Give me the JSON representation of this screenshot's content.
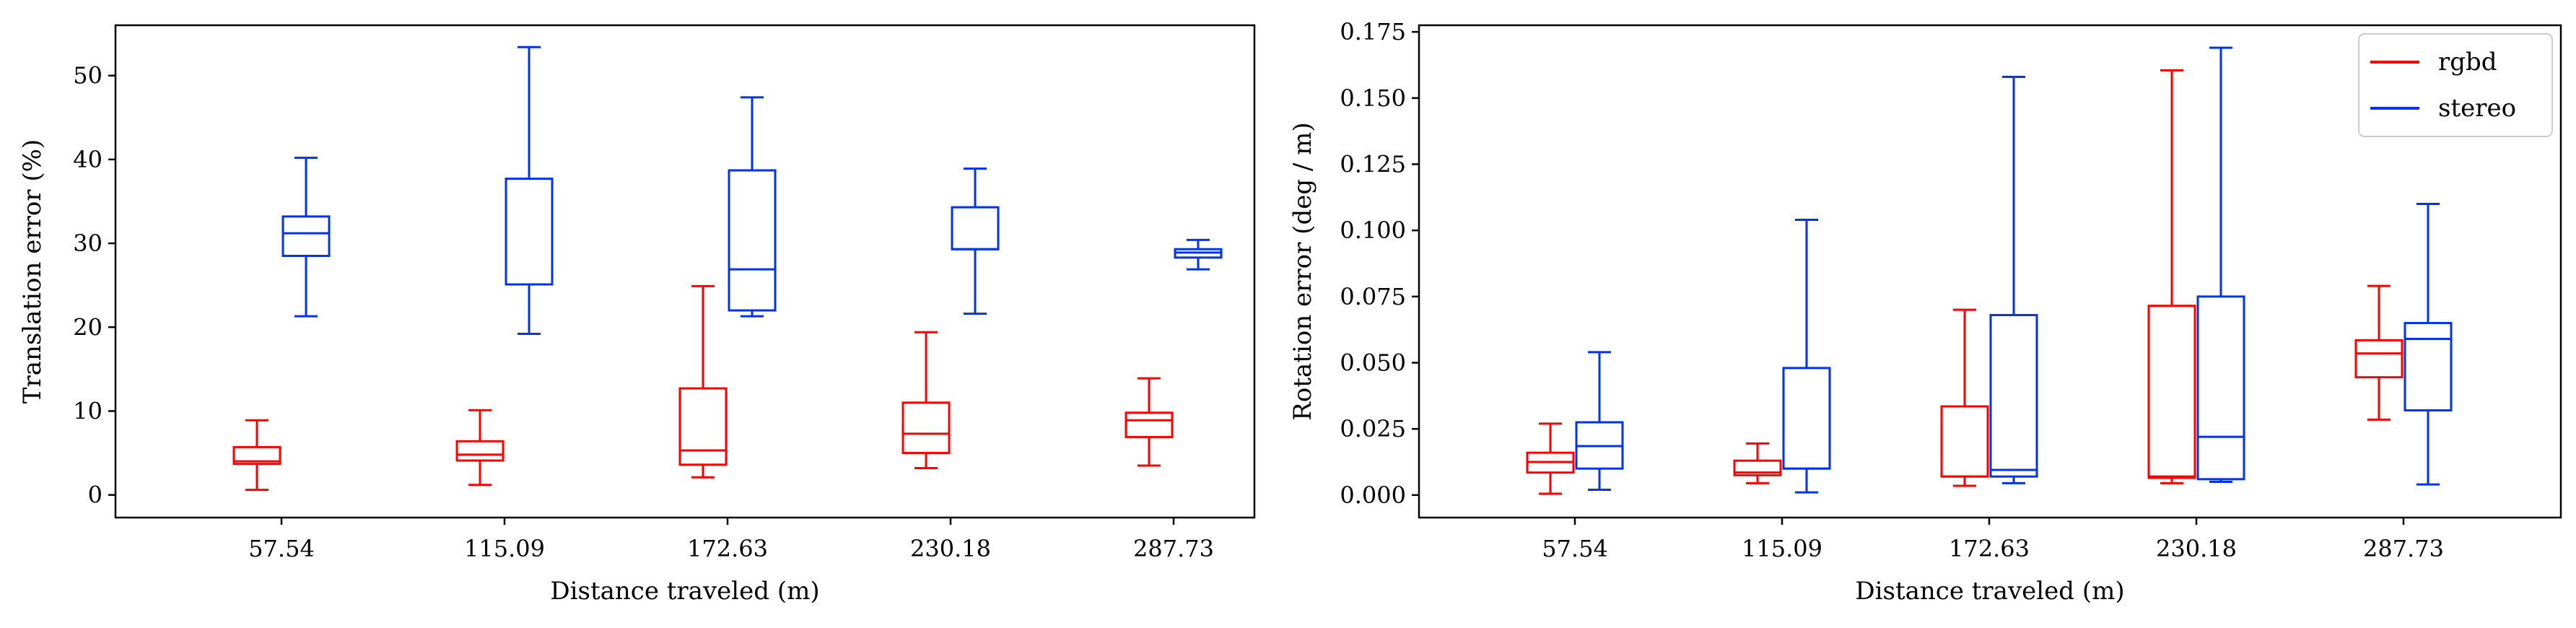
{
  "colors": {
    "rgbd": "#ff0000",
    "stereo": "#0033ee",
    "axis": "#000000"
  },
  "chart_data": [
    {
      "type": "box",
      "xlabel": "Distance traveled (m)",
      "ylabel": "Translation error (%)",
      "categories": [
        "57.54",
        "115.09",
        "172.63",
        "230.18",
        "287.73"
      ],
      "ylim": [
        -2.7,
        56.0
      ],
      "yticks": [
        0,
        10,
        20,
        30,
        40,
        50
      ],
      "ytick_labels": [
        "0",
        "10",
        "20",
        "30",
        "40",
        "50"
      ],
      "grid": false,
      "legend": null,
      "series": [
        {
          "key": "rgbd",
          "boxes": [
            {
              "whislo": 0.6,
              "q1": 3.7,
              "med": 4.0,
              "q3": 5.7,
              "whishi": 8.9
            },
            {
              "whislo": 1.2,
              "q1": 4.1,
              "med": 4.8,
              "q3": 6.4,
              "whishi": 10.1
            },
            {
              "whislo": 2.1,
              "q1": 3.6,
              "med": 5.3,
              "q3": 12.7,
              "whishi": 24.9
            },
            {
              "whislo": 3.2,
              "q1": 5.0,
              "med": 7.3,
              "q3": 11.0,
              "whishi": 19.4
            },
            {
              "whislo": 3.5,
              "q1": 6.9,
              "med": 8.9,
              "q3": 9.8,
              "whishi": 13.9
            }
          ]
        },
        {
          "key": "stereo",
          "boxes": [
            {
              "whislo": 21.3,
              "q1": 28.5,
              "med": 31.2,
              "q3": 33.2,
              "whishi": 40.2
            },
            {
              "whislo": 19.2,
              "q1": 25.1,
              "med": 25.1,
              "q3": 37.7,
              "whishi": 53.4
            },
            {
              "whislo": 21.3,
              "q1": 22.0,
              "med": 26.9,
              "q3": 38.7,
              "whishi": 47.4
            },
            {
              "whislo": 21.6,
              "q1": 29.3,
              "med": 29.3,
              "q3": 34.3,
              "whishi": 38.9
            },
            {
              "whislo": 26.9,
              "q1": 28.3,
              "med": 28.9,
              "q3": 29.3,
              "whishi": 30.4
            }
          ]
        }
      ]
    },
    {
      "type": "box",
      "xlabel": "Distance traveled (m)",
      "ylabel": "Rotation error (deg / m)",
      "categories": [
        "57.54",
        "115.09",
        "172.63",
        "230.18",
        "287.73"
      ],
      "ylim": [
        -0.0085,
        0.1775
      ],
      "yticks": [
        0,
        0.025,
        0.05,
        0.075,
        0.1,
        0.125,
        0.15,
        0.175
      ],
      "ytick_labels": [
        "0.000",
        "0.025",
        "0.050",
        "0.075",
        "0.100",
        "0.125",
        "0.150",
        "0.175"
      ],
      "grid": false,
      "legend": "top-right",
      "series": [
        {
          "key": "rgbd",
          "name": "rgbd",
          "boxes": [
            {
              "whislo": 0.0005,
              "q1": 0.0085,
              "med": 0.0125,
              "q3": 0.016,
              "whishi": 0.027
            },
            {
              "whislo": 0.0045,
              "q1": 0.0075,
              "med": 0.0085,
              "q3": 0.013,
              "whishi": 0.0195
            },
            {
              "whislo": 0.0035,
              "q1": 0.007,
              "med": 0.007,
              "q3": 0.0335,
              "whishi": 0.07
            },
            {
              "whislo": 0.0045,
              "q1": 0.0065,
              "med": 0.007,
              "q3": 0.0715,
              "whishi": 0.1605
            },
            {
              "whislo": 0.0285,
              "q1": 0.0445,
              "med": 0.0535,
              "q3": 0.0585,
              "whishi": 0.079
            }
          ]
        },
        {
          "key": "stereo",
          "name": "stereo",
          "boxes": [
            {
              "whislo": 0.002,
              "q1": 0.01,
              "med": 0.0185,
              "q3": 0.0275,
              "whishi": 0.054
            },
            {
              "whislo": 0.001,
              "q1": 0.01,
              "med": 0.01,
              "q3": 0.048,
              "whishi": 0.104
            },
            {
              "whislo": 0.0045,
              "q1": 0.007,
              "med": 0.0095,
              "q3": 0.068,
              "whishi": 0.158
            },
            {
              "whislo": 0.005,
              "q1": 0.006,
              "med": 0.022,
              "q3": 0.075,
              "whishi": 0.169
            },
            {
              "whislo": 0.004,
              "q1": 0.032,
              "med": 0.059,
              "q3": 0.065,
              "whishi": 0.11
            }
          ]
        }
      ]
    }
  ]
}
